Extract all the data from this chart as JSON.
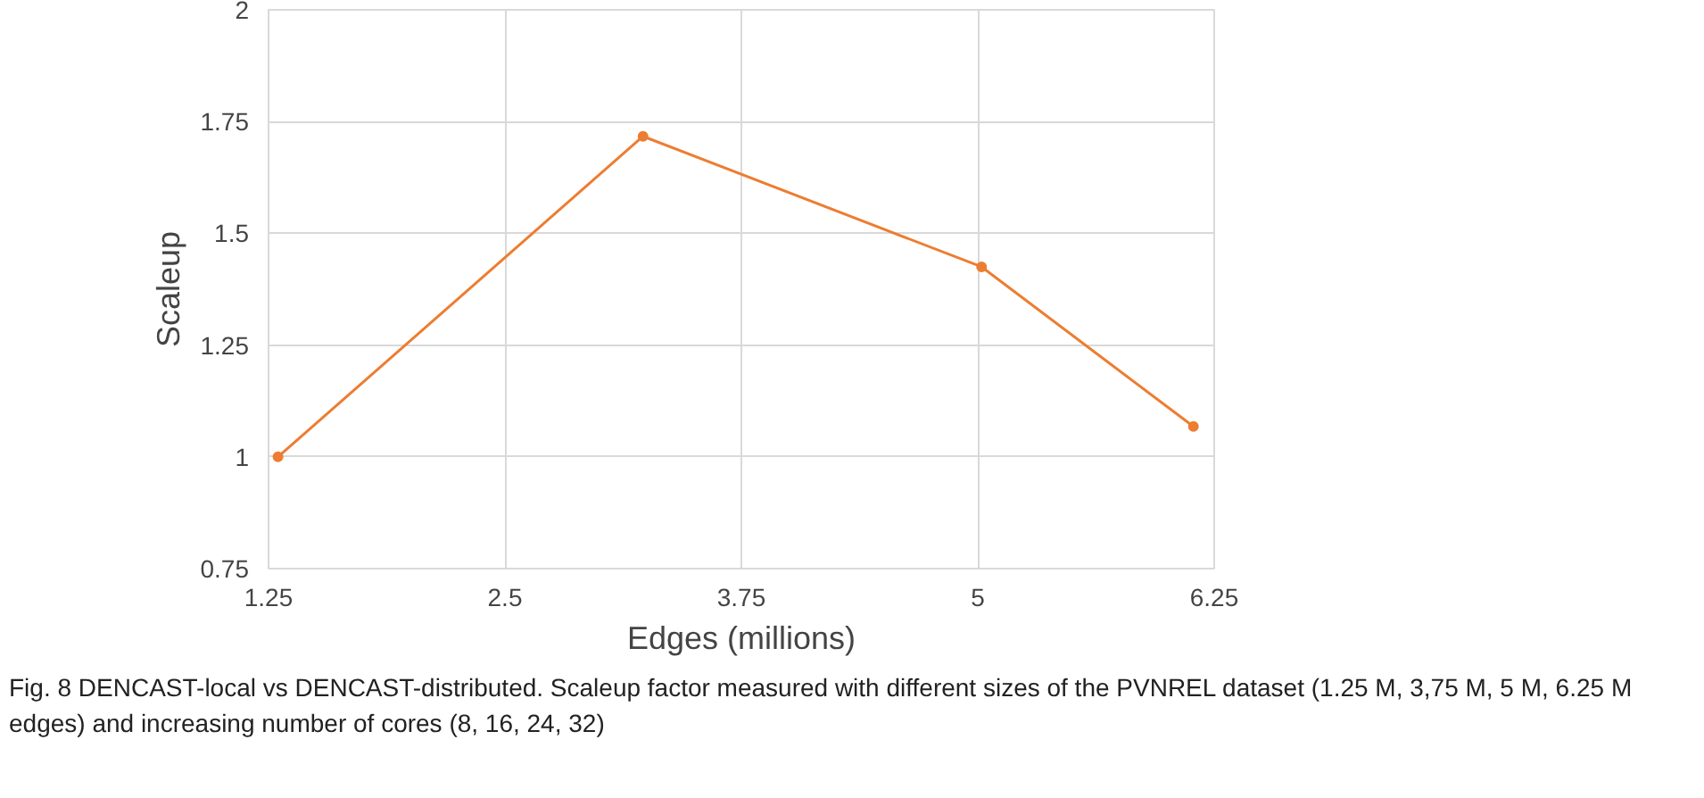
{
  "chart_data": {
    "type": "line",
    "xlabel": "Edges (millions)",
    "ylabel": "Scaleup",
    "x": [
      1.3,
      3.23,
      5.02,
      6.14
    ],
    "series": [
      {
        "color": "#ed7d31",
        "values": [
          1.0,
          1.717,
          1.425,
          1.068
        ]
      }
    ],
    "xlim": [
      1.25,
      6.25
    ],
    "xticks": [
      1.25,
      2.5,
      3.75,
      5,
      6.25
    ],
    "ylim": [
      0.75,
      2
    ],
    "yticks": [
      0.75,
      1,
      1.25,
      1.5,
      1.75,
      2
    ],
    "grid": true,
    "marker": "circle",
    "line_style": "solid",
    "annotations": [
      "Fig. 8 DENCAST-local vs DENCAST-distributed. Scaleup factor measured with different sizes of the PVNREL dataset (1.25 M, 3,75 M, 5 M, 6.25 M edges) and increasing number of cores (8, 16, 24, 32)"
    ]
  }
}
